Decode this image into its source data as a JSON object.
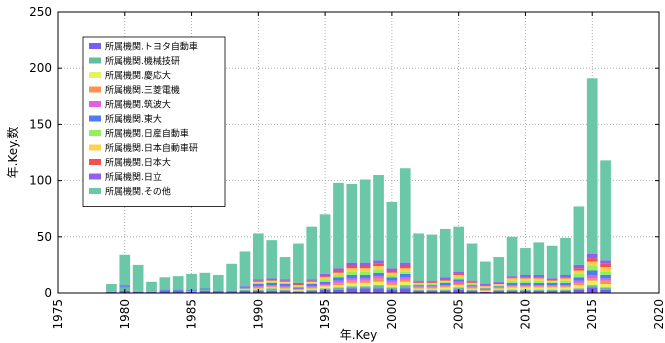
{
  "chart_data": {
    "type": "bar",
    "stacked": true,
    "xlabel": "年.Key",
    "ylabel": "年.Key.数",
    "xlim": [
      1975,
      2020
    ],
    "ylim": [
      0,
      250
    ],
    "x_ticks": [
      1975,
      1980,
      1985,
      1990,
      1995,
      2000,
      2005,
      2010,
      2015,
      2020
    ],
    "y_ticks": [
      0,
      50,
      100,
      150,
      200,
      250
    ],
    "grid": "dotted",
    "legend_position": "top-left",
    "x": [
      1979,
      1980,
      1981,
      1982,
      1983,
      1984,
      1985,
      1986,
      1987,
      1988,
      1989,
      1990,
      1991,
      1992,
      1993,
      1994,
      1995,
      1996,
      1997,
      1998,
      1999,
      2000,
      2001,
      2002,
      2003,
      2004,
      2005,
      2006,
      2007,
      2008,
      2009,
      2010,
      2011,
      2012,
      2013,
      2014,
      2015,
      2016
    ],
    "series": [
      {
        "name": "所属機関.トヨタ自動車",
        "color": "#7a5cf5",
        "values": [
          1,
          2,
          1,
          1,
          2,
          2,
          1,
          2,
          1,
          1,
          2,
          2,
          2,
          2,
          1,
          2,
          3,
          3,
          4,
          4,
          4,
          3,
          4,
          2,
          2,
          2,
          3,
          2,
          1,
          2,
          2,
          2,
          2,
          2,
          2,
          3,
          5,
          3
        ]
      },
      {
        "name": "所属機関.機械技研",
        "color": "#5fbf9f",
        "values": [
          0,
          3,
          1,
          0,
          0,
          0,
          1,
          1,
          0,
          0,
          1,
          1,
          2,
          1,
          1,
          1,
          1,
          2,
          2,
          2,
          3,
          2,
          3,
          1,
          1,
          1,
          2,
          1,
          0,
          1,
          1,
          1,
          1,
          1,
          1,
          1,
          2,
          2
        ]
      },
      {
        "name": "所属機関.慶応大",
        "color": "#e8f060",
        "values": [
          0,
          0,
          0,
          0,
          0,
          0,
          0,
          0,
          0,
          0,
          1,
          1,
          1,
          1,
          1,
          1,
          2,
          2,
          3,
          3,
          3,
          2,
          3,
          1,
          1,
          2,
          2,
          1,
          1,
          1,
          2,
          2,
          2,
          2,
          2,
          3,
          4,
          3
        ]
      },
      {
        "name": "所属機関.三菱電機",
        "color": "#ff9050",
        "values": [
          0,
          0,
          0,
          0,
          0,
          0,
          0,
          0,
          0,
          0,
          0,
          1,
          1,
          1,
          0,
          1,
          1,
          2,
          2,
          2,
          3,
          2,
          2,
          1,
          1,
          1,
          1,
          1,
          1,
          1,
          1,
          1,
          1,
          1,
          1,
          2,
          2,
          3
        ]
      },
      {
        "name": "所属機関.筑波大",
        "color": "#e060e0",
        "values": [
          0,
          0,
          0,
          0,
          0,
          0,
          0,
          0,
          0,
          0,
          0,
          1,
          1,
          1,
          1,
          1,
          1,
          2,
          2,
          2,
          2,
          2,
          2,
          1,
          1,
          1,
          2,
          1,
          0,
          0,
          1,
          1,
          1,
          1,
          1,
          2,
          3,
          2
        ]
      },
      {
        "name": "所属機関.東大",
        "color": "#4d7bf0",
        "values": [
          0,
          1,
          0,
          0,
          1,
          1,
          1,
          1,
          1,
          1,
          1,
          2,
          2,
          2,
          1,
          2,
          2,
          3,
          3,
          3,
          3,
          3,
          3,
          1,
          1,
          2,
          2,
          1,
          1,
          1,
          2,
          2,
          2,
          2,
          2,
          3,
          4,
          3
        ]
      },
      {
        "name": "所属機関.日産自動車",
        "color": "#90f060",
        "values": [
          0,
          0,
          0,
          0,
          0,
          0,
          0,
          0,
          0,
          0,
          0,
          1,
          1,
          1,
          1,
          1,
          2,
          2,
          3,
          3,
          3,
          2,
          2,
          1,
          1,
          1,
          2,
          1,
          1,
          1,
          2,
          2,
          2,
          1,
          2,
          3,
          4,
          3
        ]
      },
      {
        "name": "所属機関.日本自動車研",
        "color": "#ffd050",
        "values": [
          0,
          0,
          0,
          0,
          0,
          0,
          0,
          0,
          0,
          0,
          0,
          1,
          1,
          1,
          1,
          1,
          2,
          2,
          3,
          3,
          3,
          2,
          3,
          1,
          1,
          1,
          2,
          1,
          1,
          1,
          2,
          2,
          2,
          1,
          2,
          3,
          4,
          4
        ]
      },
      {
        "name": "所属機関.日本大",
        "color": "#f05050",
        "values": [
          0,
          0,
          0,
          0,
          0,
          0,
          0,
          0,
          0,
          0,
          0,
          1,
          1,
          1,
          1,
          1,
          1,
          2,
          2,
          2,
          2,
          2,
          2,
          1,
          1,
          1,
          1,
          1,
          1,
          1,
          1,
          1,
          1,
          1,
          1,
          2,
          3,
          3
        ]
      },
      {
        "name": "所属機関.日立",
        "color": "#9060f0",
        "values": [
          0,
          1,
          0,
          0,
          0,
          0,
          0,
          0,
          0,
          0,
          1,
          1,
          1,
          1,
          1,
          1,
          2,
          2,
          3,
          3,
          3,
          2,
          3,
          1,
          1,
          2,
          2,
          1,
          1,
          1,
          1,
          2,
          2,
          1,
          2,
          3,
          4,
          3
        ]
      },
      {
        "name": "所属機関.その他",
        "color": "#6ac7a8",
        "values": [
          7,
          27,
          23,
          9,
          11,
          12,
          14,
          14,
          14,
          24,
          31,
          41,
          34,
          20,
          35,
          47,
          53,
          76,
          70,
          74,
          76,
          59,
          84,
          42,
          41,
          43,
          40,
          33,
          20,
          22,
          35,
          24,
          29,
          29,
          33,
          52,
          156,
          89
        ]
      }
    ]
  }
}
